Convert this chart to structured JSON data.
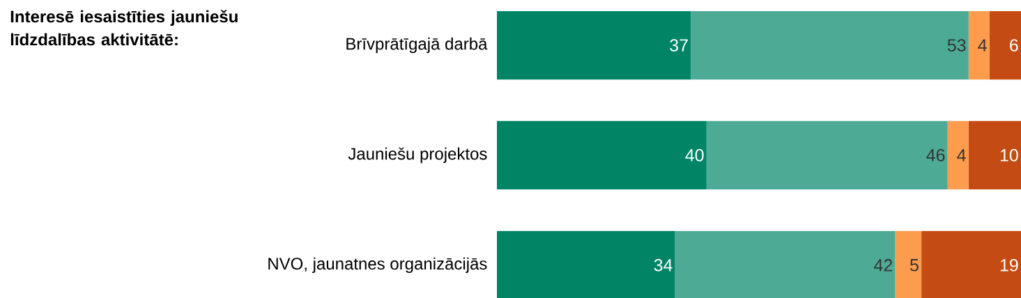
{
  "chart_data": {
    "type": "bar",
    "orientation": "horizontal",
    "stacked": true,
    "title": "Interesē iesaistīties jauniešu līdzdalības aktivitātē:",
    "categories": [
      "Brīvprātīgajā darbā",
      "Jauniešu projektos",
      "NVO, jaunatnes organizācijās"
    ],
    "series": [
      {
        "color": "#008466",
        "values": [
          37,
          40,
          34
        ]
      },
      {
        "color": "#4dab95",
        "values": [
          53,
          46,
          42
        ]
      },
      {
        "color": "#fe9c4d",
        "values": [
          4,
          4,
          5
        ]
      },
      {
        "color": "#c44b13",
        "values": [
          6,
          10,
          19
        ]
      }
    ],
    "data_labels": true,
    "tick_labels": "y"
  }
}
